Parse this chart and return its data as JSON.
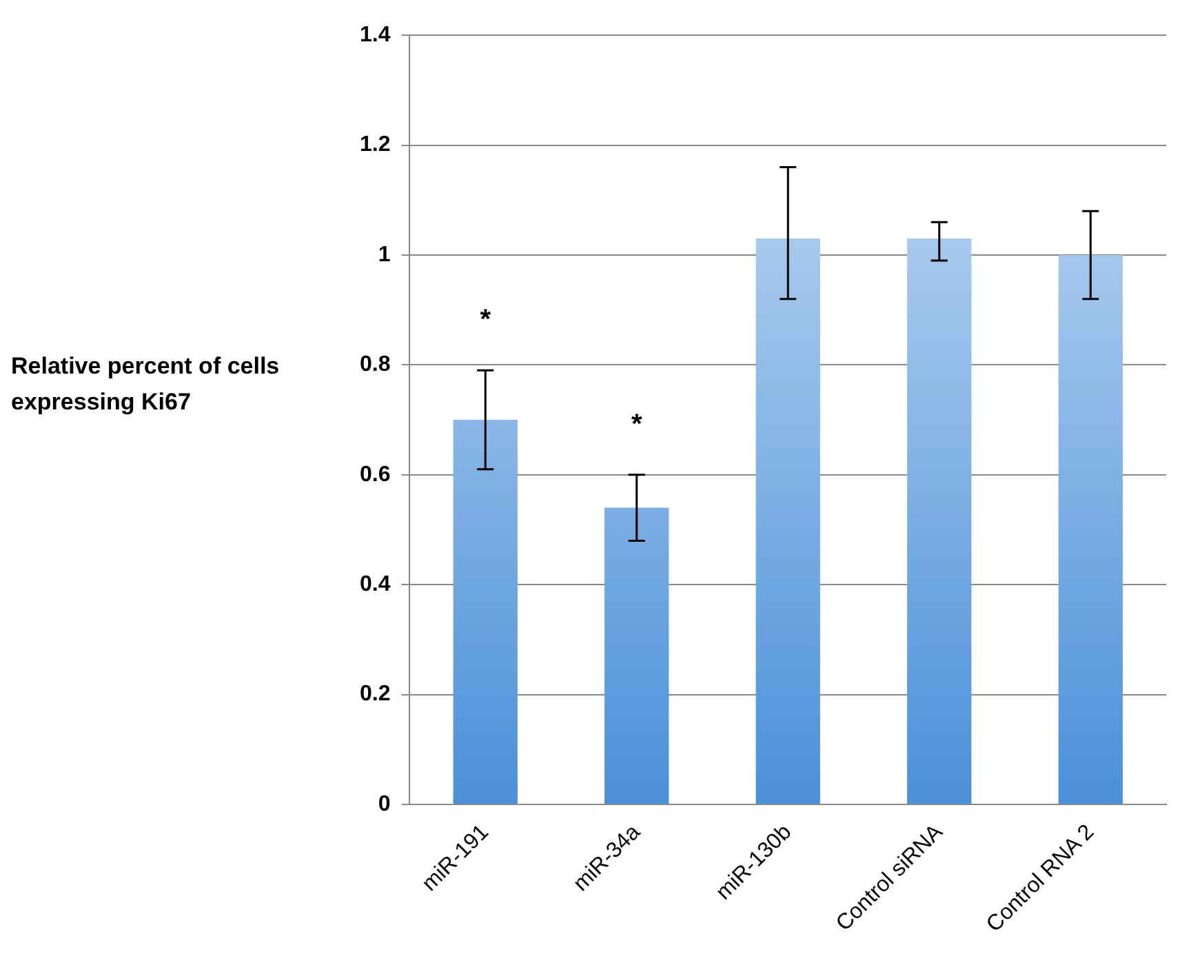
{
  "chart_data": {
    "type": "bar",
    "ylabel": "Relative percent of cells expressing Ki67",
    "categories": [
      "miR-191",
      "miR-34a",
      "miR-130b",
      "Control siRNA",
      "Control RNA 2"
    ],
    "values": [
      0.7,
      0.54,
      1.03,
      1.03,
      1.0
    ],
    "errors": [
      [
        0.61,
        0.79
      ],
      [
        0.48,
        0.6
      ],
      [
        0.92,
        1.16
      ],
      [
        0.99,
        1.06
      ],
      [
        0.92,
        1.08
      ]
    ],
    "color": "#4a90d9",
    "ylim": [
      0,
      1.4
    ],
    "yticks": [
      0,
      0.2,
      0.4,
      0.6,
      0.8,
      1,
      1.2,
      1.4
    ],
    "grid": "y",
    "annotations": [
      {
        "text": "*",
        "x": "miR-191",
        "y": 0.79
      },
      {
        "text": "*",
        "x": "miR-34a",
        "y": 0.6
      }
    ]
  }
}
